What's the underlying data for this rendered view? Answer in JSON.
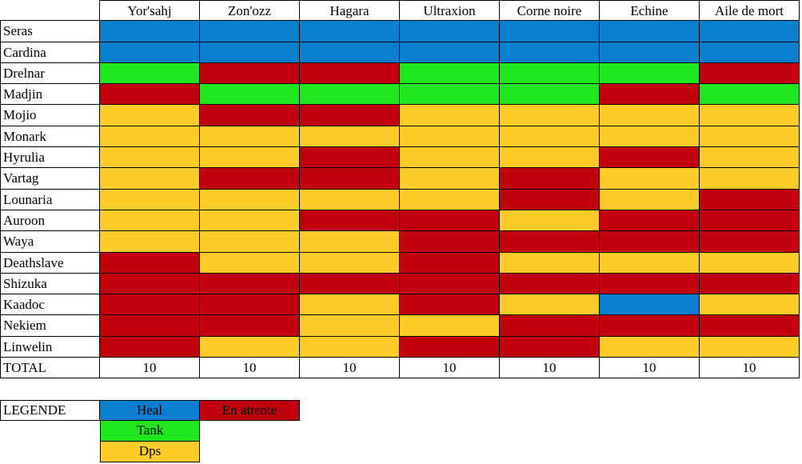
{
  "colors": {
    "heal": "#0b7fcf",
    "tank": "#1fe61f",
    "dps": "#fdcc29",
    "wait": "#c1000e"
  },
  "columns": [
    "Yor'sahj",
    "Zon'ozz",
    "Hagara",
    "Ultraxion",
    "Corne noire",
    "Echine",
    "Aile de mort"
  ],
  "rows": [
    {
      "name": "Seras",
      "cells": [
        "heal",
        "heal",
        "heal",
        "heal",
        "heal",
        "heal",
        "heal"
      ]
    },
    {
      "name": "Cardina",
      "cells": [
        "heal",
        "heal",
        "heal",
        "heal",
        "heal",
        "heal",
        "heal"
      ]
    },
    {
      "name": "Drelnar",
      "cells": [
        "tank",
        "wait",
        "wait",
        "tank",
        "tank",
        "tank",
        "wait"
      ]
    },
    {
      "name": "Madjin",
      "cells": [
        "wait",
        "tank",
        "tank",
        "tank",
        "tank",
        "wait",
        "tank"
      ]
    },
    {
      "name": "Mojio",
      "cells": [
        "dps",
        "wait",
        "wait",
        "dps",
        "dps",
        "dps",
        "dps"
      ]
    },
    {
      "name": "Monark",
      "cells": [
        "dps",
        "dps",
        "dps",
        "dps",
        "dps",
        "dps",
        "dps"
      ]
    },
    {
      "name": "Hyrulia",
      "cells": [
        "dps",
        "dps",
        "wait",
        "dps",
        "dps",
        "wait",
        "dps"
      ]
    },
    {
      "name": "Vartag",
      "cells": [
        "dps",
        "wait",
        "wait",
        "dps",
        "wait",
        "dps",
        "dps"
      ]
    },
    {
      "name": "Lounaria",
      "cells": [
        "dps",
        "dps",
        "dps",
        "dps",
        "wait",
        "dps",
        "wait"
      ]
    },
    {
      "name": "Auroon",
      "cells": [
        "dps",
        "dps",
        "wait",
        "wait",
        "dps",
        "wait",
        "wait"
      ]
    },
    {
      "name": "Waya",
      "cells": [
        "dps",
        "dps",
        "dps",
        "wait",
        "wait",
        "wait",
        "wait"
      ]
    },
    {
      "name": "Deathslave",
      "cells": [
        "wait",
        "dps",
        "dps",
        "wait",
        "dps",
        "dps",
        "dps"
      ]
    },
    {
      "name": "Shizuka",
      "cells": [
        "wait",
        "wait",
        "wait",
        "wait",
        "wait",
        "wait",
        "wait"
      ]
    },
    {
      "name": "Kaadoc",
      "cells": [
        "wait",
        "wait",
        "dps",
        "wait",
        "dps",
        "heal",
        "dps"
      ]
    },
    {
      "name": "Nekiem",
      "cells": [
        "wait",
        "wait",
        "dps",
        "dps",
        "wait",
        "wait",
        "wait"
      ]
    },
    {
      "name": "Linwelin",
      "cells": [
        "wait",
        "dps",
        "dps",
        "wait",
        "wait",
        "dps",
        "dps"
      ]
    }
  ],
  "total": {
    "label": "TOTAL",
    "values": [
      "10",
      "10",
      "10",
      "10",
      "10",
      "10",
      "10"
    ]
  },
  "legend": {
    "title": "LEGENDE",
    "heal": "Heal",
    "wait": "En attente",
    "tank": "Tank",
    "dps": "Dps"
  }
}
